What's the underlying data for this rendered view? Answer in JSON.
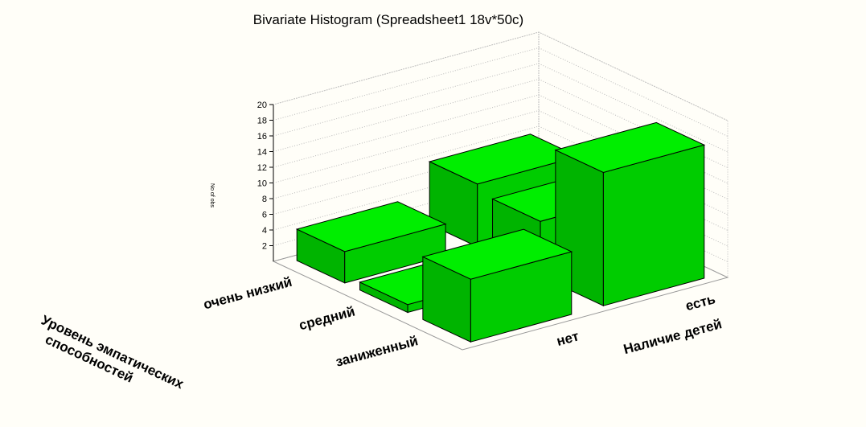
{
  "chart_data": {
    "type": "bar3d",
    "title": "Bivariate Histogram (Spreadsheet1 18v*50c)",
    "x_label": "Наличие детей",
    "y_label": [
      "Уровень эмпатических",
      "способностей"
    ],
    "z_label": "No of obs",
    "x_categories": [
      "нет",
      "есть"
    ],
    "y_categories": [
      "очень низкий",
      "средний",
      "заниженный"
    ],
    "values": [
      [
        4,
        8
      ],
      [
        1,
        7
      ],
      [
        8,
        17
      ]
    ],
    "zlim": [
      0,
      20
    ],
    "zticks": [
      2,
      4,
      6,
      8,
      10,
      12,
      14,
      16,
      18,
      20
    ],
    "color": "#00ee00",
    "grid": true
  }
}
